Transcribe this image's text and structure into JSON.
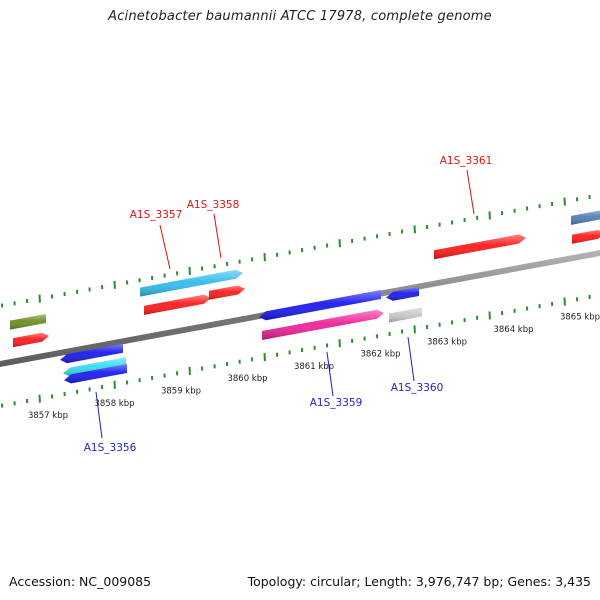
{
  "title": "Acinetobacter baumannii ATCC 17978, complete genome",
  "footer": {
    "accession_label": "Accession:",
    "accession": "NC_009085",
    "topology_label": "Topology:",
    "topology": "circular",
    "length_label": "Length:",
    "length": "3,976,747 bp",
    "genes_label": "Genes:",
    "genes": "3,435"
  },
  "map": {
    "backbone_color": "#8c8c8c",
    "tick_color": "#2e8b2e",
    "position_labels": [
      {
        "kbp": 3857,
        "text": "3857 kbp"
      },
      {
        "kbp": 3858,
        "text": "3858 kbp"
      },
      {
        "kbp": 3859,
        "text": "3859 kbp"
      },
      {
        "kbp": 3860,
        "text": "3860 kbp"
      },
      {
        "kbp": 3861,
        "text": "3861 kbp"
      },
      {
        "kbp": 3862,
        "text": "3862 kbp"
      },
      {
        "kbp": 3863,
        "text": "3863 kbp"
      },
      {
        "kbp": 3864,
        "text": "3864 kbp"
      },
      {
        "kbp": 3865,
        "text": "3865 kbp"
      }
    ],
    "gene_labels": [
      {
        "text": "A1S_3356",
        "strand": "reverse",
        "color": "#1f1fcc"
      },
      {
        "text": "A1S_3357",
        "strand": "forward",
        "color": "#dd1111"
      },
      {
        "text": "A1S_3358",
        "strand": "forward",
        "color": "#dd1111"
      },
      {
        "text": "A1S_3359",
        "strand": "reverse",
        "color": "#1f1fcc"
      },
      {
        "text": "A1S_3360",
        "strand": "reverse",
        "color": "#1f1fcc"
      },
      {
        "text": "A1S_3361",
        "strand": "forward",
        "color": "#dd1111"
      }
    ],
    "features": [
      {
        "name": "feature-olive-upper",
        "color": "#6b8e23",
        "direction": "none"
      },
      {
        "name": "feature-red-left",
        "color": "#ff1a1a",
        "direction": "forward"
      },
      {
        "name": "feature-blue-3356a",
        "color": "#1a1aee",
        "direction": "reverse"
      },
      {
        "name": "feature-cyan-3356",
        "color": "#33ddee",
        "direction": "reverse"
      },
      {
        "name": "feature-blue-3356b",
        "color": "#1a1aee",
        "direction": "reverse"
      },
      {
        "name": "feature-cyan-3357",
        "color": "#33bbee",
        "direction": "forward"
      },
      {
        "name": "feature-red-3357",
        "color": "#ff1a1a",
        "direction": "forward"
      },
      {
        "name": "feature-red-3358",
        "color": "#ff1a1a",
        "direction": "forward"
      },
      {
        "name": "feature-blue-3359",
        "color": "#1a1aee",
        "direction": "reverse"
      },
      {
        "name": "feature-pink-3359",
        "color": "#ee2299",
        "direction": "forward"
      },
      {
        "name": "feature-blue-3360",
        "color": "#1a1aee",
        "direction": "reverse"
      },
      {
        "name": "feature-gray-3360",
        "color": "#c8c8c8",
        "direction": "none"
      },
      {
        "name": "feature-red-3361",
        "color": "#ff1a1a",
        "direction": "forward"
      },
      {
        "name": "feature-steelblue-edge",
        "color": "#4f7fb0",
        "direction": "none"
      },
      {
        "name": "feature-red-edge",
        "color": "#ff1a1a",
        "direction": "forward"
      }
    ]
  }
}
